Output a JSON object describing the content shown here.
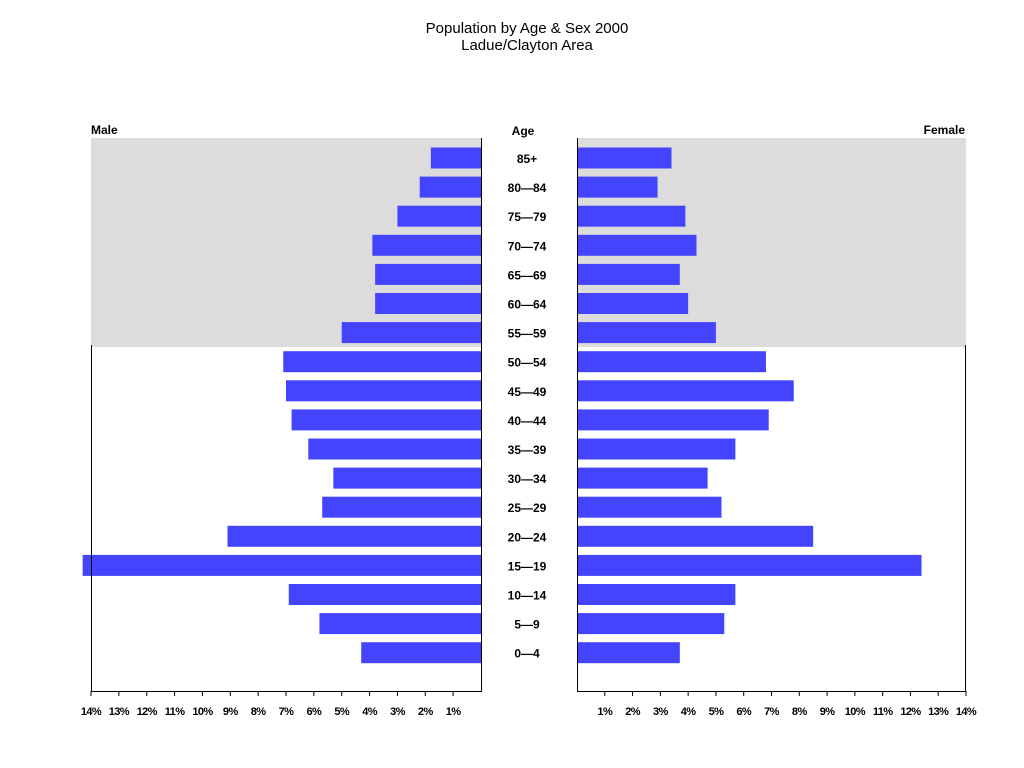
{
  "chart_data": {
    "type": "bar",
    "orientation": "horizontal-pyramid",
    "title": "Population by Age & Sex 2000",
    "subtitle": "Ladue/Clayton Area",
    "age_header": "Age",
    "categories": [
      "85+",
      "80—84",
      "75—79",
      "70—74",
      "65—69",
      "60—64",
      "55—59",
      "50—54",
      "45—49",
      "40—44",
      "35—39",
      "30—34",
      "25—29",
      "20—24",
      "15—19",
      "10—14",
      "5—9",
      "0—4"
    ],
    "series": [
      {
        "name": "Male",
        "values": [
          1.8,
          2.2,
          3.0,
          3.9,
          3.8,
          3.8,
          5.0,
          7.1,
          7.0,
          6.8,
          6.2,
          5.3,
          5.7,
          9.1,
          14.3,
          6.9,
          5.8,
          4.3
        ]
      },
      {
        "name": "Female",
        "values": [
          3.4,
          2.9,
          3.9,
          4.3,
          3.7,
          4.0,
          5.0,
          6.8,
          7.8,
          6.9,
          5.7,
          4.7,
          5.2,
          8.5,
          12.4,
          5.7,
          5.3,
          3.7
        ]
      }
    ],
    "xlim": [
      0,
      14
    ],
    "ticks": [
      {
        "v": 1,
        "label": "1%"
      },
      {
        "v": 2,
        "label": "2%"
      },
      {
        "v": 3,
        "label": "3%"
      },
      {
        "v": 4,
        "label": "4%"
      },
      {
        "v": 5,
        "label": "5%"
      },
      {
        "v": 6,
        "label": "6%"
      },
      {
        "v": 7,
        "label": "7%"
      },
      {
        "v": 8,
        "label": "8%"
      },
      {
        "v": 9,
        "label": "9%"
      },
      {
        "v": 10,
        "label": "10%"
      },
      {
        "v": 11,
        "label": "11%"
      },
      {
        "v": 12,
        "label": "12%"
      },
      {
        "v": 13,
        "label": "13%"
      },
      {
        "v": 14,
        "label": "14%"
      }
    ],
    "shaded_age_groups": [
      "85+",
      "80—84",
      "75—79",
      "70—74",
      "65—69",
      "60—64",
      "55—59"
    ],
    "grid": false,
    "colors": {
      "bar": "#4444ff",
      "shade": "#dcdcdc",
      "axis": "#000000"
    }
  }
}
